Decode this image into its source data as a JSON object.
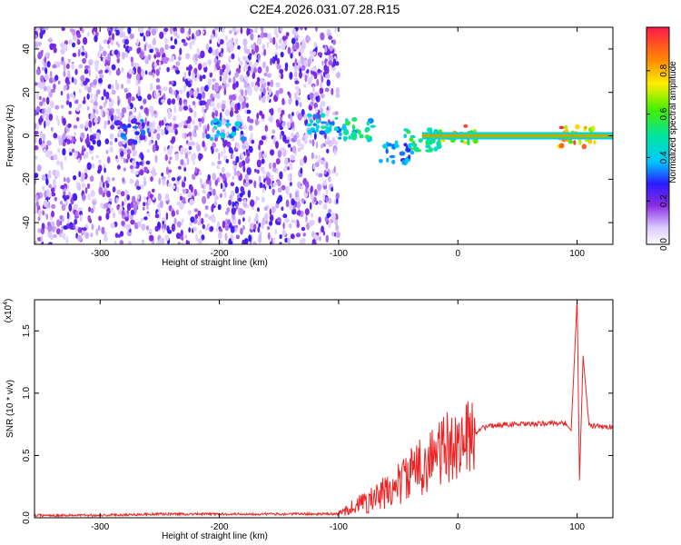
{
  "title": "C2E4.2026.031.07.28.R15",
  "chart_data": [
    {
      "type": "heatmap",
      "xlabel": "Height of straight line (km)",
      "ylabel": "Frequency (Hz)",
      "xlim": [
        -355,
        130
      ],
      "ylim": [
        -50,
        50
      ],
      "xticks": [
        -300,
        -200,
        -100,
        0,
        100
      ],
      "yticks": [
        -40,
        -20,
        0,
        20,
        40
      ],
      "xtick_labels": [
        "-300",
        "-200",
        "-100",
        "0",
        "100"
      ],
      "ytick_labels": [
        "-40",
        "-20",
        "0",
        "20",
        "40"
      ],
      "colorbar": {
        "label": "Normalized spectral amplitude",
        "range": [
          0,
          1
        ],
        "ticks": [
          0.0,
          0.2,
          0.4,
          0.6,
          0.8
        ],
        "tick_labels": [
          "0.0",
          "0.2",
          "0.4",
          "0.6",
          "0.8"
        ]
      },
      "noise_region_x": [
        -355,
        -100
      ],
      "features": [
        {
          "x": -273,
          "y": 2,
          "amplitude": 0.35
        },
        {
          "x": -195,
          "y": 3,
          "amplitude": 0.45
        },
        {
          "x": -110,
          "y": 6,
          "amplitude": 0.5
        },
        {
          "x": -85,
          "y": 3,
          "amplitude": 0.55
        },
        {
          "x": -50,
          "y": -8,
          "amplitude": 0.4
        },
        {
          "x": -30,
          "y": -2,
          "amplitude": 0.6
        },
        {
          "x": 0,
          "y": 0,
          "amplitude": 0.9
        },
        {
          "x": 100,
          "y": 0,
          "amplitude": 0.95
        }
      ],
      "carrier": {
        "x": [
          -30,
          130
        ],
        "y": 0
      }
    },
    {
      "type": "line",
      "xlabel": "Height of straight line (km)",
      "ylabel": "SNR (10 * v/v)",
      "scale_label": "(x10",
      "scale_exponent": "4",
      "xlim": [
        -355,
        130
      ],
      "ylim": [
        0,
        1.75
      ],
      "xticks": [
        -300,
        -200,
        -100,
        0,
        100
      ],
      "yticks": [
        0.0,
        0.5,
        1.0,
        1.5
      ],
      "xtick_labels": [
        "-300",
        "-200",
        "-100",
        "0",
        "100"
      ],
      "ytick_labels": [
        "0.0",
        "0.5",
        "1.0",
        "1.5"
      ],
      "color": "#ee2222",
      "x": [
        -355,
        -300,
        -250,
        -200,
        -150,
        -120,
        -100,
        -90,
        -80,
        -70,
        -60,
        -50,
        -40,
        -30,
        -20,
        -10,
        0,
        10,
        20,
        30,
        40,
        60,
        80,
        90,
        95,
        100,
        102,
        105,
        110,
        120,
        130
      ],
      "y": [
        0.02,
        0.02,
        0.03,
        0.03,
        0.03,
        0.03,
        0.03,
        0.08,
        0.12,
        0.15,
        0.2,
        0.27,
        0.35,
        0.42,
        0.5,
        0.55,
        0.6,
        0.65,
        0.72,
        0.74,
        0.75,
        0.75,
        0.76,
        0.76,
        0.7,
        1.75,
        0.3,
        1.3,
        0.74,
        0.73,
        0.73
      ]
    }
  ]
}
